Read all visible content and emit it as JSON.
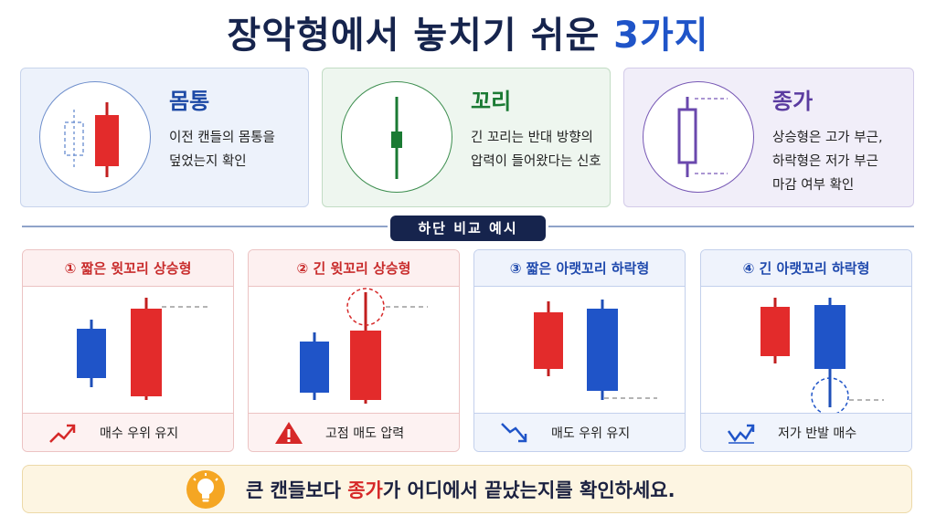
{
  "title": {
    "prefix": "장악형에서 놓치기 쉬운 ",
    "accent": "3가지"
  },
  "cards": [
    {
      "title": "몸통",
      "desc": "이전 캔들의 몸통을\n덮었는지 확인",
      "icon": "engulfing-candles-icon"
    },
    {
      "title": "꼬리",
      "desc": "긴 꼬리는 반대 방향의\n압력이 들어왔다는 신호",
      "icon": "candle-wick-icon"
    },
    {
      "title": "종가",
      "desc": "상승형은 고가 부근,\n하락형은 저가 부근\n마감 여부 확인",
      "icon": "close-price-candle-icon"
    }
  ],
  "section_label": "하단 비교 예시",
  "panels": [
    {
      "title": "① 짧은 윗꼬리 상승형",
      "footer": "매수 우위 유지",
      "theme": "red",
      "footer_icon": "trend-up-icon"
    },
    {
      "title": "② 긴 윗꼬리 상승형",
      "footer": "고점 매도 압력",
      "theme": "red",
      "footer_icon": "warning-icon"
    },
    {
      "title": "③ 짧은 아랫꼬리 하락형",
      "footer": "매도 우위 유지",
      "theme": "blue",
      "footer_icon": "trend-down-icon"
    },
    {
      "title": "④ 긴 아랫꼬리 하락형",
      "footer": "저가 반발 매수",
      "theme": "blue",
      "footer_icon": "rebound-up-icon"
    }
  ],
  "tip": {
    "before": "큰 캔들보다 ",
    "highlight": "종가",
    "after": "가 어디에서 끝났는지를 확인하세요.",
    "icon": "lightbulb-icon"
  },
  "colors": {
    "bull": "#e32b2b",
    "bear": "#1f54c8",
    "navy": "#16244d",
    "green": "#1a7a33",
    "purple": "#5a3ba0"
  }
}
